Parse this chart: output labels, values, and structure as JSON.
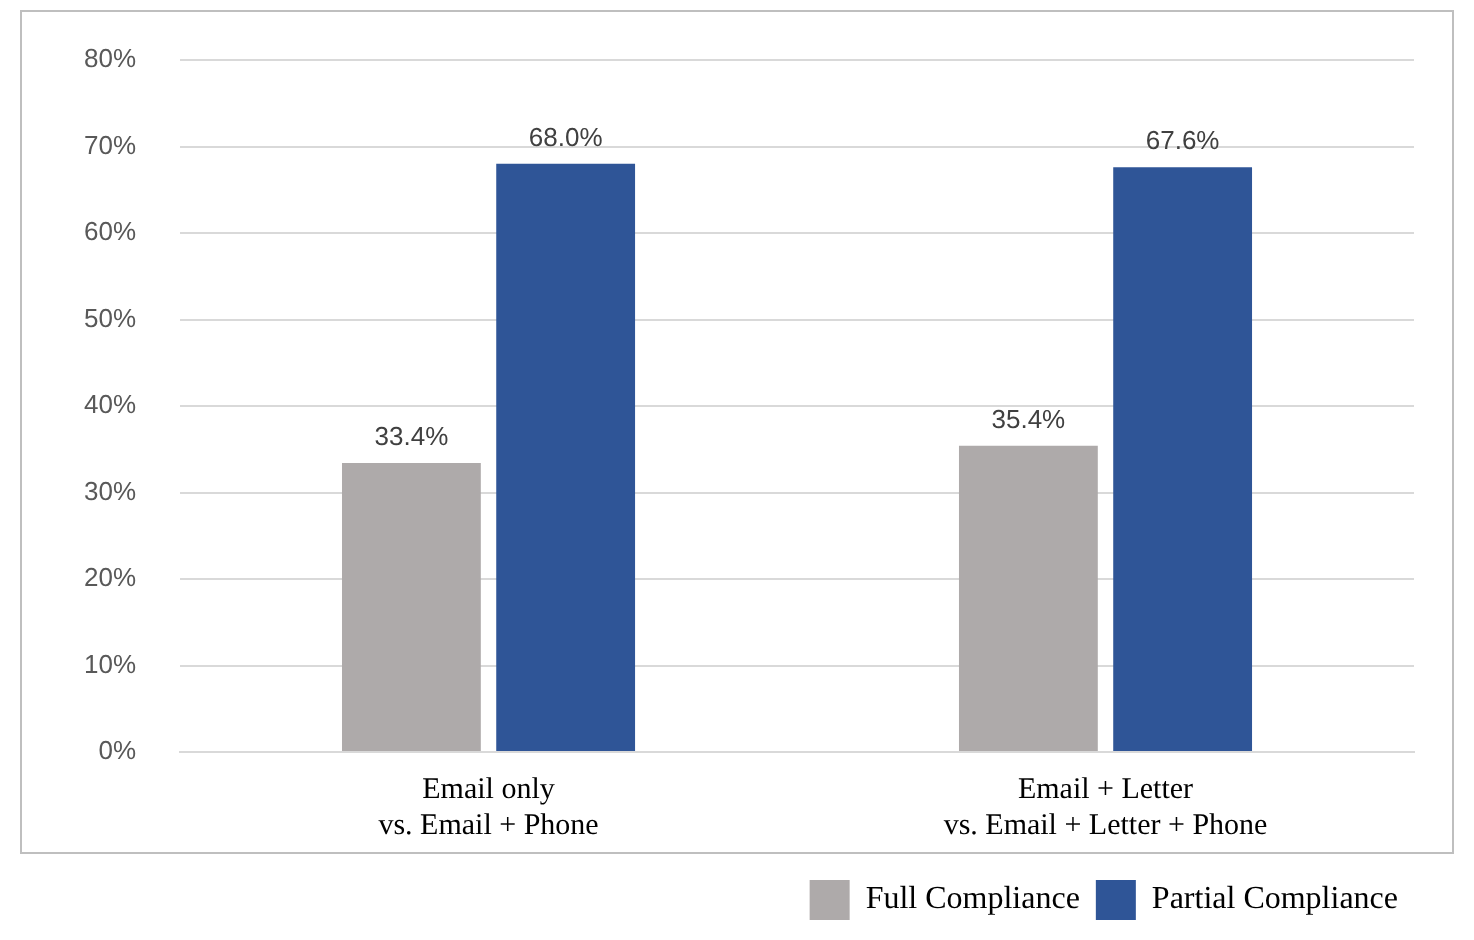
{
  "chart_data": {
    "type": "bar",
    "categories": [
      "Email only\nvs. Email + Phone",
      "Email + Letter\nvs. Email + Letter + Phone"
    ],
    "series": [
      {
        "name": "Full Compliance",
        "color": "#aeaaaa",
        "values": [
          33.4,
          35.4
        ],
        "value_labels": [
          "33.4%",
          "35.4%"
        ]
      },
      {
        "name": "Partial Compliance",
        "color": "#2f5597",
        "values": [
          68.0,
          67.6
        ],
        "value_labels": [
          "68.0%",
          "67.6%"
        ]
      }
    ],
    "ylim": [
      0,
      80
    ],
    "yticks": [
      {
        "value": 0,
        "label": "0%"
      },
      {
        "value": 10,
        "label": "10%"
      },
      {
        "value": 20,
        "label": "20%"
      },
      {
        "value": 30,
        "label": "30%"
      },
      {
        "value": 40,
        "label": "40%"
      },
      {
        "value": 50,
        "label": "50%"
      },
      {
        "value": 60,
        "label": "60%"
      },
      {
        "value": 70,
        "label": "70%"
      },
      {
        "value": 80,
        "label": "80%"
      }
    ],
    "grid": "y",
    "legend": "bottom right"
  }
}
